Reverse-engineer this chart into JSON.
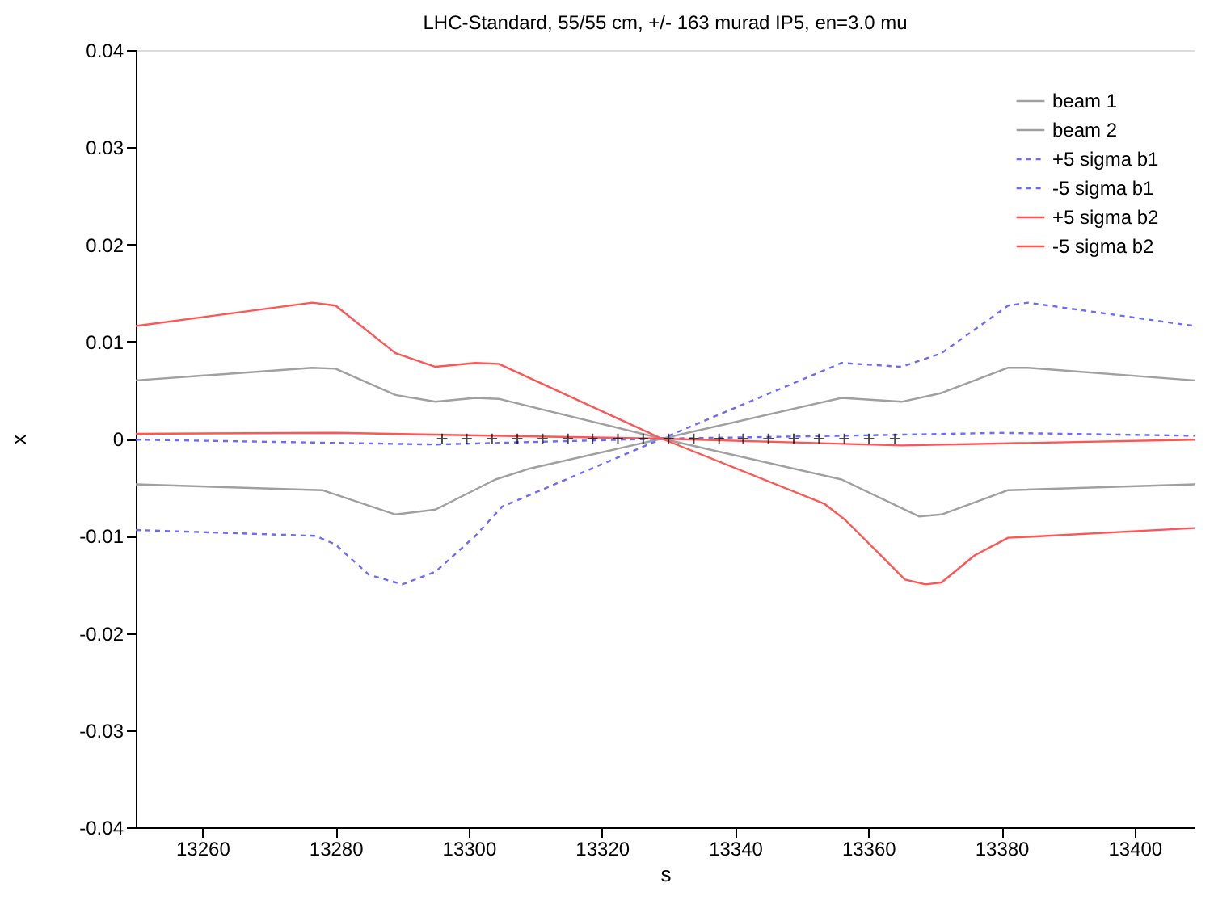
{
  "chart_data": {
    "type": "line",
    "title": "LHC-Standard, 55/55 cm, +/- 163 murad IP5, en=3.0 mu",
    "xlabel": "s",
    "ylabel": "x",
    "xlim": [
      13250,
      13409
    ],
    "xticks": [
      13260,
      13280,
      13300,
      13320,
      13340,
      13360,
      13380,
      13400
    ],
    "ylim": [
      -0.04,
      0.04
    ],
    "yticks": [
      -0.04,
      -0.03,
      -0.02,
      -0.01,
      0,
      0.01,
      0.02,
      0.03,
      0.04
    ],
    "grid": false,
    "legend": "top right",
    "marker": "none",
    "series": [
      {
        "name": "beam 1",
        "color": "#a0a0a0",
        "line_style": "solid",
        "x": [
          13250,
          13278,
          13289,
          13295,
          13304,
          13309,
          13329,
          13356,
          13365,
          13371,
          13381,
          13384,
          13409
        ],
        "values": [
          -0.0047,
          -0.0053,
          -0.0078,
          -0.0073,
          -0.0042,
          -0.0031,
          0,
          0.0042,
          0.0038,
          0.0047,
          0.0073,
          0.0073,
          0.006
        ]
      },
      {
        "name": "beam 2",
        "color": "#a0a0a0",
        "line_style": "solid",
        "x": [
          13250,
          13276.5,
          13280,
          13289,
          13295,
          13301,
          13304.5,
          13329,
          13356,
          13367.6,
          13371,
          13381,
          13409
        ],
        "values": [
          0.006,
          0.0073,
          0.0072,
          0.0045,
          0.0038,
          0.0042,
          0.0041,
          0,
          -0.0042,
          -0.008,
          -0.0078,
          -0.0053,
          -0.0047
        ]
      },
      {
        "name": "+5 sigma b1",
        "color": "#6b6bff",
        "line_style": "dashed",
        "x": [
          13250,
          13295,
          13329,
          13356,
          13365,
          13371,
          13381,
          13384,
          13409
        ],
        "values": [
          -0.0001,
          -0.0006,
          0,
          0.0078,
          0.0074,
          0.0088,
          0.0137,
          0.014,
          0.0116
        ]
      },
      {
        "name": "-5 sigma b1",
        "color": "#6b6bff",
        "line_style": "dashed",
        "x": [
          13250,
          13277,
          13280,
          13285,
          13290,
          13295,
          13301,
          13305,
          13329,
          13356,
          13380,
          13409
        ],
        "values": [
          -0.0094,
          -0.01,
          -0.0109,
          -0.014,
          -0.015,
          -0.0137,
          -0.01,
          -0.007,
          0,
          0.0003,
          0.0006,
          0.0003
        ]
      },
      {
        "name": "+5 sigma b2",
        "color": "#ff5555",
        "line_style": "solid",
        "x": [
          13250,
          13276.5,
          13280,
          13289,
          13295,
          13301,
          13304.5,
          13329,
          13353.4,
          13356.6,
          13362.3,
          13365.5,
          13368.6,
          13371,
          13376,
          13381,
          13384,
          13409
        ],
        "values": [
          0.0116,
          0.014,
          0.0137,
          0.0088,
          0.0074,
          0.0078,
          0.0077,
          0,
          -0.0067,
          -0.0084,
          -0.0123,
          -0.0145,
          -0.015,
          -0.0148,
          -0.012,
          -0.0102,
          -0.0101,
          -0.0092
        ]
      },
      {
        "name": "-5 sigma b2",
        "color": "#ff5555",
        "line_style": "solid",
        "x": [
          13250,
          13280,
          13329,
          13365,
          13409
        ],
        "values": [
          0.0005,
          0.0006,
          0,
          -0.0007,
          -0.0001
        ]
      },
      {
        "type": "scatter",
        "marker": "cross",
        "color": "#000000",
        "x": [
          13296,
          13299.7,
          13303.5,
          13307.3,
          13311.1,
          13314.9,
          13318.6,
          13322.4,
          13326.2,
          13330,
          13333.8,
          13337.6,
          13341.2,
          13345,
          13348.8,
          13352.6,
          13356.4,
          13360.1,
          13364
        ],
        "values": [
          0,
          0,
          0,
          0,
          0,
          0,
          0,
          0,
          0,
          0,
          0,
          0,
          0,
          0,
          0,
          0,
          0,
          0,
          0
        ]
      }
    ]
  }
}
